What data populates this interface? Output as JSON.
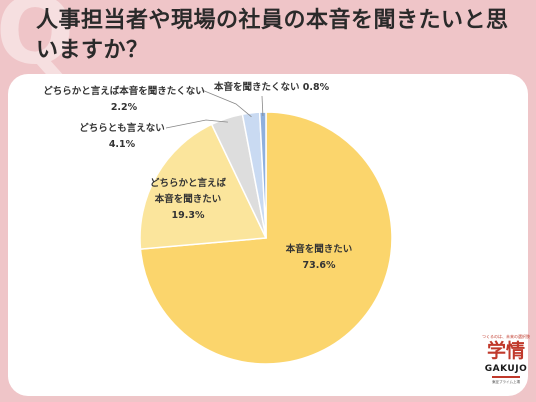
{
  "title": "人事担当者や現場の社員の本音を聞きたいと思いますか？",
  "decor": {
    "q_mark": "Q"
  },
  "logo": {
    "tagline": "つくるのは、未来の選択肢",
    "name": "学情",
    "sub": "GAKUJO",
    "foot": "東証プライム上場"
  },
  "chart_data": {
    "type": "pie",
    "title": "人事担当者や現場の社員の本音を聞きたいと思いますか？",
    "start": "12 o'clock, clockwise",
    "slices": [
      {
        "label": "本音を聞きたい",
        "value": 73.6,
        "value_label": "73.6%",
        "color": "#fbd56c"
      },
      {
        "label": "どちらかと言えば本音を聞きたい",
        "value": 19.3,
        "value_label": "19.3%",
        "color": "#fbe59c"
      },
      {
        "label": "どちらとも言えない",
        "value": 4.1,
        "value_label": "4.1%",
        "color": "#dddddd"
      },
      {
        "label": "どちらかと言えば本音を聞きたくない",
        "value": 2.2,
        "value_label": "2.2%",
        "color": "#c9daf2"
      },
      {
        "label": "本音を聞きたくない",
        "value": 0.8,
        "value_label": "0.8%",
        "color": "#8fb0de"
      }
    ],
    "label_lines": [
      [
        "本音を聞きたい",
        "73.6%"
      ],
      [
        "どちらかと言えば",
        "本音を聞きたい",
        "19.3%"
      ],
      [
        "どちらとも言えない",
        "4.1%"
      ],
      [
        "どちらかと言えば本音を聞きたくない",
        "2.2%"
      ],
      [
        "本音を聞きたくない 0.8%"
      ]
    ]
  }
}
